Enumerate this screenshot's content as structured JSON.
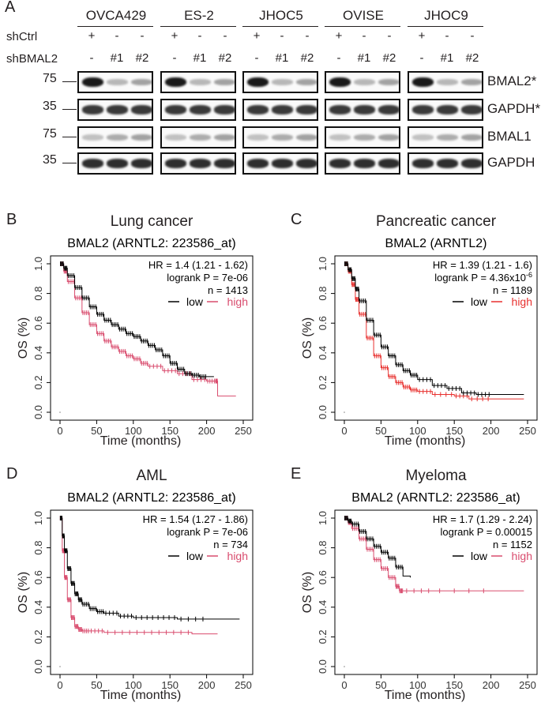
{
  "panel_a": {
    "letter": "A",
    "cell_lines": [
      "OVCA429",
      "ES-2",
      "JHOC5",
      "OVISE",
      "JHOC9"
    ],
    "row_labels": {
      "shctrl": "shCtrl",
      "shbmal2": "shBMAL2"
    },
    "shctrl_symbols": [
      "+",
      "-",
      "-"
    ],
    "shbmal2_symbols": [
      "-",
      "#1",
      "#2"
    ],
    "blots": [
      {
        "label": "BMAL2*",
        "marker": "75",
        "intensities": [
          1.0,
          0.25,
          0.35
        ]
      },
      {
        "label": "GAPDH*",
        "marker": "35",
        "intensities": [
          0.85,
          0.85,
          0.85
        ]
      },
      {
        "label": "BMAL1",
        "marker": "75",
        "intensities": [
          0.2,
          0.3,
          0.35
        ]
      },
      {
        "label": "GAPDH",
        "marker": "35",
        "intensities": [
          0.9,
          0.9,
          0.9
        ]
      }
    ]
  },
  "charts": [
    {
      "letter": "B",
      "title": "Lung cancer",
      "subtitle": "BMAL2 (ARNTL2: 223586_at)",
      "hr": "HR = 1.4 (1.21 - 1.62)",
      "logrank": "logrank P = 7e-06",
      "n": "n = 1413",
      "legend_high_color": "#d94c6e"
    },
    {
      "letter": "C",
      "title": "Pancreatic cancer",
      "subtitle": "BMAL2 (ARNTL2)",
      "hr": "HR = 1.39 (1.21 - 1.6)",
      "logrank": "logrank P = 4.36x10",
      "logrank_exp": "-6",
      "n": "n = 1189",
      "legend_high_color": "#e8312f"
    },
    {
      "letter": "D",
      "title": "AML",
      "subtitle": "BMAL2 (ARNTL2: 223586_at)",
      "hr": "HR = 1.54 (1.27 - 1.86)",
      "logrank": "logrank P = 7e-06",
      "n": "n = 734",
      "legend_high_color": "#d94c6e"
    },
    {
      "letter": "E",
      "title": "Myeloma",
      "subtitle": "BMAL2 (ARNTL2: 223586_at)",
      "hr": "HR = 1.7 (1.29 - 2.24)",
      "logrank": "logrank P = 0.00015",
      "n": "n = 1152",
      "legend_high_color": "#d94c6e"
    }
  ],
  "chart_data": [
    {
      "type": "line",
      "title": "Lung cancer",
      "xlabel": "Time (months)",
      "ylabel": "OS (%)",
      "xlim": [
        0,
        250
      ],
      "ylim": [
        0,
        1
      ],
      "xticks": [
        0,
        50,
        100,
        150,
        200,
        250
      ],
      "yticks": [
        0.0,
        0.2,
        0.4,
        0.6,
        0.8,
        1.0
      ],
      "series": [
        {
          "name": "low",
          "color": "#000000",
          "x": [
            0,
            5,
            10,
            20,
            30,
            40,
            50,
            60,
            70,
            80,
            90,
            100,
            110,
            120,
            130,
            140,
            150,
            160,
            170,
            180,
            190,
            200,
            210
          ],
          "y": [
            1.0,
            0.97,
            0.92,
            0.84,
            0.77,
            0.71,
            0.66,
            0.62,
            0.59,
            0.56,
            0.53,
            0.51,
            0.48,
            0.45,
            0.42,
            0.38,
            0.33,
            0.29,
            0.26,
            0.25,
            0.24,
            0.24,
            0.24
          ]
        },
        {
          "name": "high",
          "color": "#d94c6e",
          "x": [
            0,
            5,
            10,
            20,
            30,
            40,
            50,
            60,
            70,
            80,
            90,
            100,
            110,
            120,
            140,
            160,
            180,
            200,
            212,
            215,
            240
          ],
          "y": [
            1.0,
            0.95,
            0.88,
            0.77,
            0.67,
            0.59,
            0.53,
            0.48,
            0.44,
            0.41,
            0.38,
            0.36,
            0.33,
            0.31,
            0.28,
            0.26,
            0.22,
            0.21,
            0.21,
            0.11,
            0.11
          ]
        }
      ]
    },
    {
      "type": "line",
      "title": "Pancreatic cancer",
      "xlabel": "Time (months)",
      "ylabel": "OS (%)",
      "xlim": [
        0,
        250
      ],
      "ylim": [
        0,
        1
      ],
      "xticks": [
        0,
        50,
        100,
        150,
        200,
        250
      ],
      "yticks": [
        0.0,
        0.2,
        0.4,
        0.6,
        0.8,
        1.0
      ],
      "series": [
        {
          "name": "low",
          "color": "#000000",
          "x": [
            0,
            5,
            10,
            15,
            20,
            30,
            40,
            50,
            60,
            70,
            80,
            90,
            100,
            120,
            140,
            160,
            180,
            200,
            245
          ],
          "y": [
            1.0,
            0.96,
            0.9,
            0.83,
            0.75,
            0.62,
            0.52,
            0.44,
            0.38,
            0.32,
            0.28,
            0.25,
            0.22,
            0.18,
            0.16,
            0.13,
            0.12,
            0.12,
            0.12
          ]
        },
        {
          "name": "high",
          "color": "#e8312f",
          "x": [
            0,
            5,
            10,
            15,
            20,
            30,
            40,
            50,
            60,
            70,
            80,
            90,
            100,
            120,
            150,
            170,
            200,
            245
          ],
          "y": [
            1.0,
            0.95,
            0.86,
            0.76,
            0.66,
            0.5,
            0.38,
            0.3,
            0.24,
            0.2,
            0.17,
            0.15,
            0.14,
            0.12,
            0.11,
            0.09,
            0.09,
            0.09
          ]
        }
      ]
    },
    {
      "type": "line",
      "title": "AML",
      "xlabel": "Time (months)",
      "ylabel": "OS (%)",
      "xlim": [
        0,
        250
      ],
      "ylim": [
        0,
        1
      ],
      "xticks": [
        0,
        50,
        100,
        150,
        200,
        250
      ],
      "yticks": [
        0.0,
        0.2,
        0.4,
        0.6,
        0.8,
        1.0
      ],
      "series": [
        {
          "name": "low",
          "color": "#000000",
          "x": [
            0,
            3,
            6,
            10,
            15,
            20,
            25,
            30,
            40,
            50,
            60,
            80,
            100,
            130,
            160,
            200,
            245
          ],
          "y": [
            1.0,
            0.88,
            0.78,
            0.66,
            0.56,
            0.49,
            0.45,
            0.42,
            0.39,
            0.37,
            0.36,
            0.34,
            0.33,
            0.33,
            0.32,
            0.32,
            0.32
          ]
        },
        {
          "name": "high",
          "color": "#d94c6e",
          "x": [
            0,
            3,
            6,
            10,
            15,
            20,
            25,
            30,
            40,
            60,
            100,
            140,
            180,
            215
          ],
          "y": [
            1.0,
            0.78,
            0.6,
            0.45,
            0.33,
            0.27,
            0.25,
            0.24,
            0.24,
            0.23,
            0.23,
            0.23,
            0.22,
            0.22
          ]
        }
      ]
    },
    {
      "type": "line",
      "title": "Myeloma",
      "xlabel": "Time (months)",
      "ylabel": "OS (%)",
      "xlim": [
        0,
        250
      ],
      "ylim": [
        0,
        1
      ],
      "xticks": [
        0,
        50,
        100,
        150,
        200,
        250
      ],
      "yticks": [
        0.0,
        0.2,
        0.4,
        0.6,
        0.8,
        1.0
      ],
      "series": [
        {
          "name": "low",
          "color": "#000000",
          "x": [
            0,
            5,
            10,
            20,
            30,
            40,
            50,
            60,
            70,
            80,
            90
          ],
          "y": [
            1.0,
            0.98,
            0.96,
            0.91,
            0.86,
            0.81,
            0.77,
            0.73,
            0.67,
            0.61,
            0.6
          ]
        },
        {
          "name": "high",
          "color": "#d94c6e",
          "x": [
            0,
            5,
            10,
            20,
            30,
            40,
            50,
            60,
            70,
            75,
            80,
            120,
            200,
            245
          ],
          "y": [
            1.0,
            0.97,
            0.93,
            0.86,
            0.79,
            0.72,
            0.66,
            0.6,
            0.54,
            0.51,
            0.51,
            0.51,
            0.51,
            0.51
          ]
        }
      ]
    }
  ]
}
